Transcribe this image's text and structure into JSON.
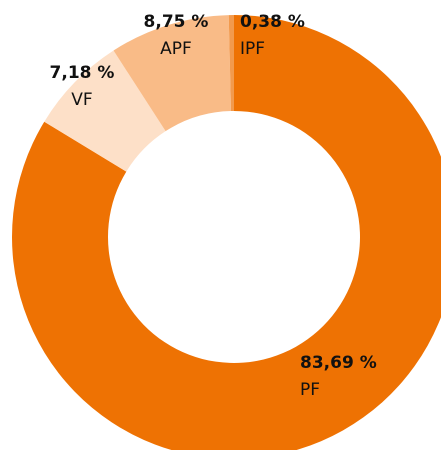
{
  "chart_data": {
    "type": "donut",
    "categories": [
      "PF",
      "VF",
      "APF",
      "IPF"
    ],
    "values": [
      83.69,
      7.18,
      8.75,
      0.38
    ],
    "value_labels": [
      "83,69 %",
      "7,18 %",
      "8,75 %",
      "0,38 %"
    ],
    "colors": [
      "#ee7203",
      "#fde0c8",
      "#f9bb87",
      "#f29a4d"
    ]
  }
}
